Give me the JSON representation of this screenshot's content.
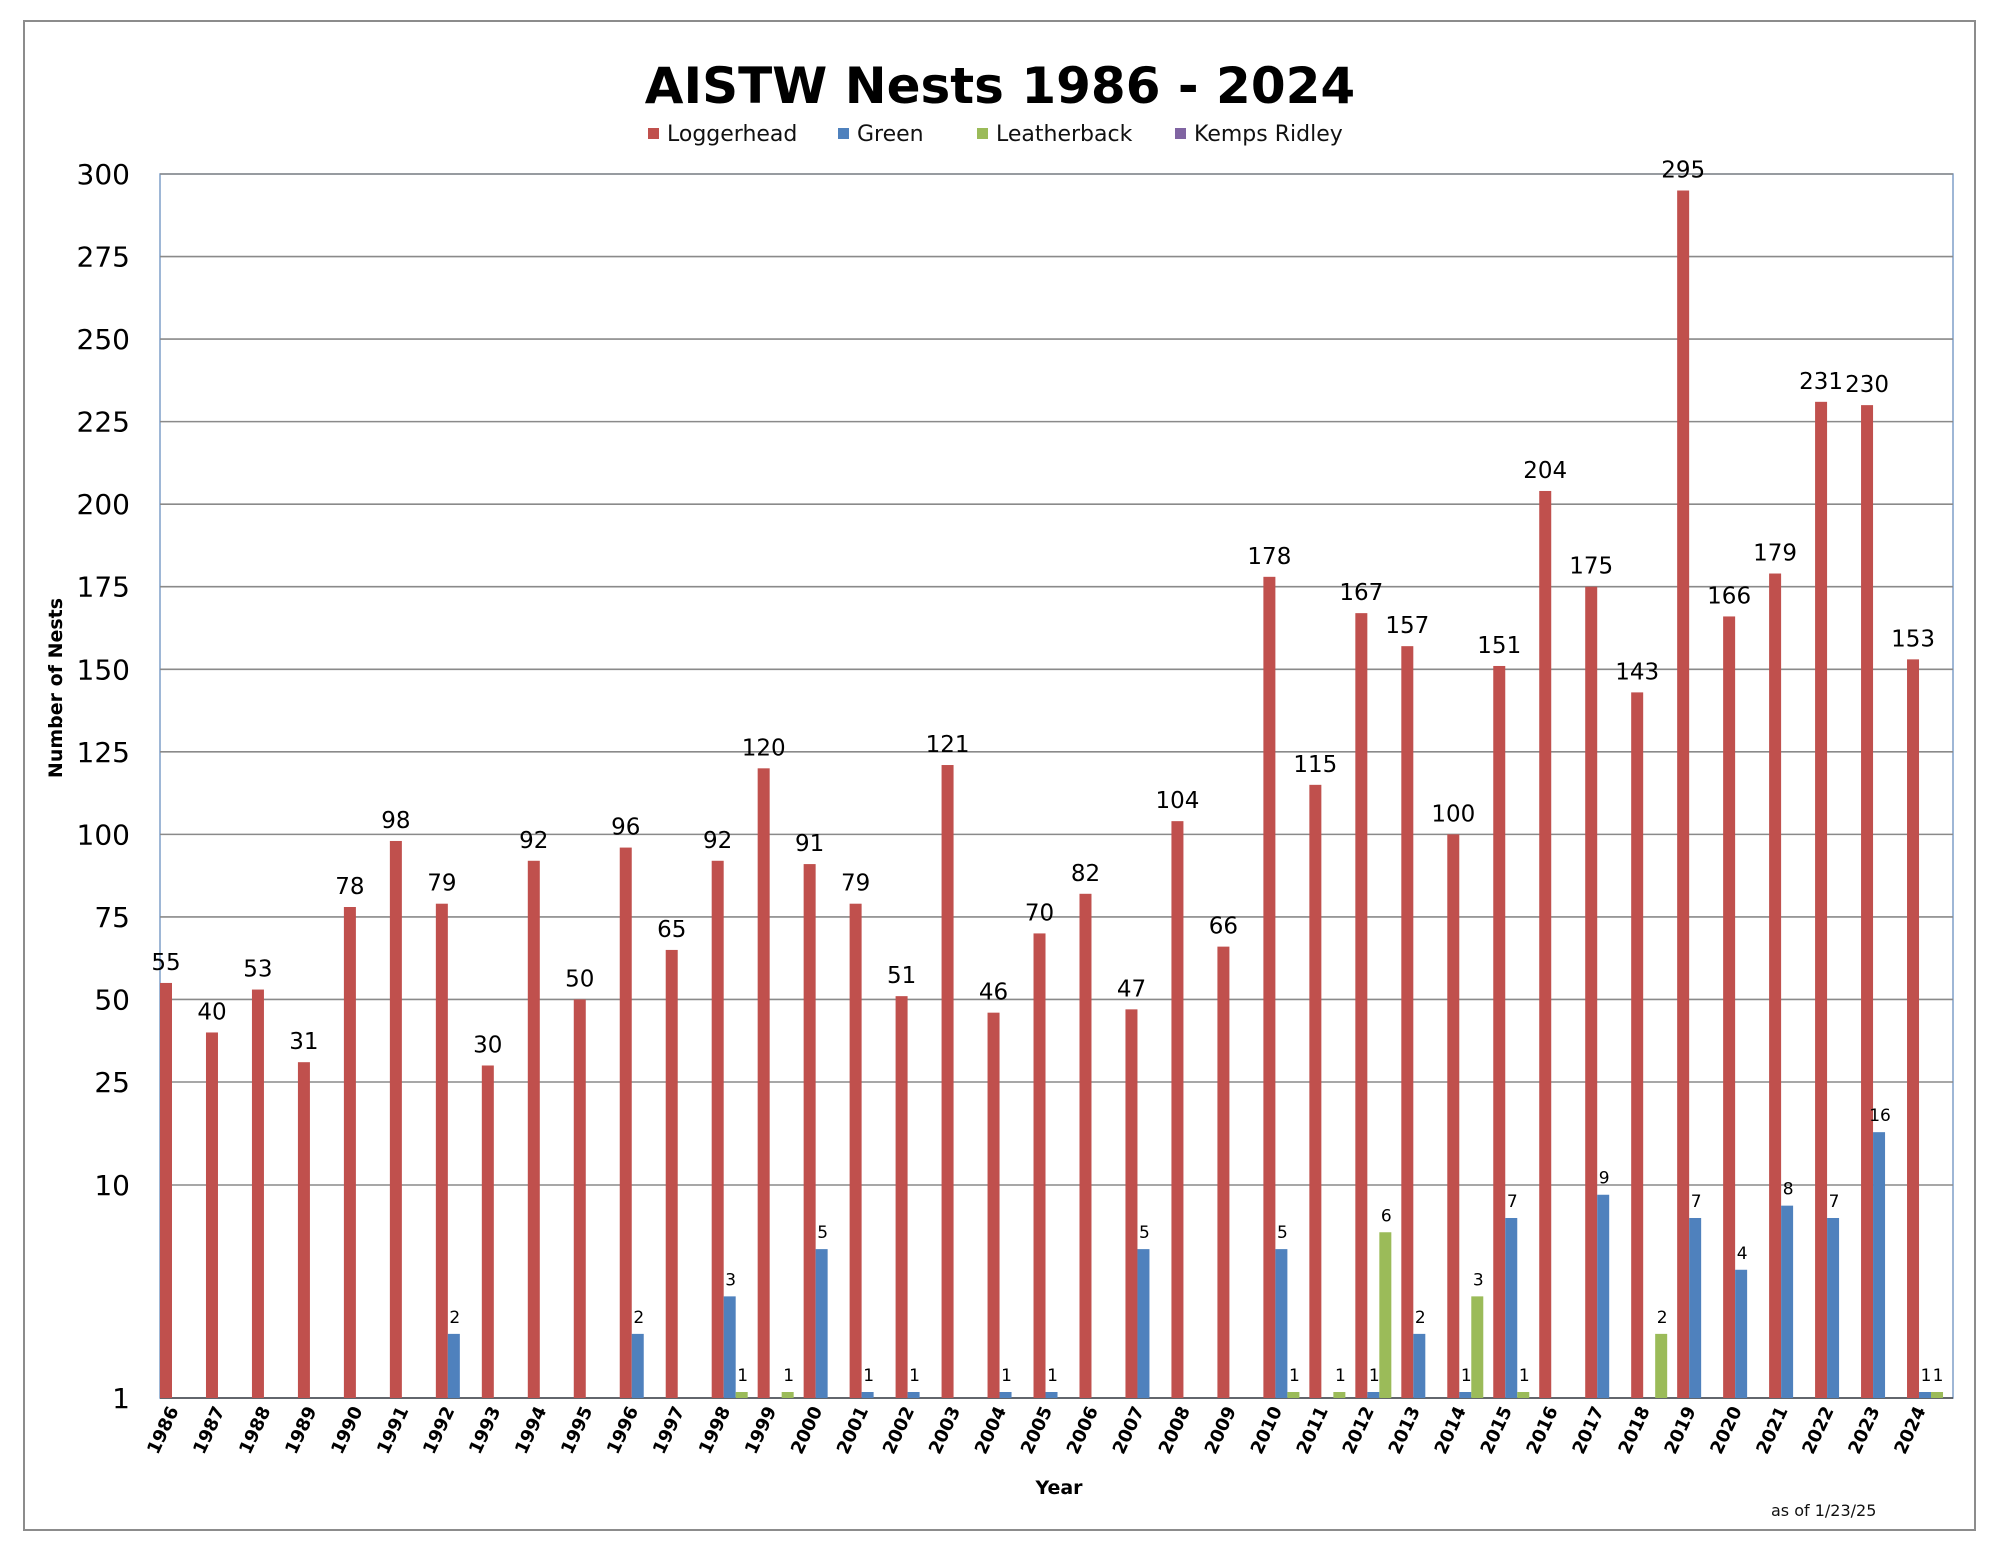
{
  "chart_data": {
    "type": "bar",
    "title": "AISTW Nests 1986 - 2024",
    "xlabel": "Year",
    "ylabel": "Number of Nests",
    "note": "as of 1/23/25",
    "legend_position": "top",
    "grid": true,
    "y_scale": "broken: log-like 1-25, linear 25-300",
    "ylim": [
      1,
      300
    ],
    "y_ticks": [
      1,
      10,
      25,
      50,
      75,
      100,
      125,
      150,
      175,
      200,
      225,
      250,
      275,
      300
    ],
    "categories": [
      "1986",
      "1987",
      "1988",
      "1989",
      "1990",
      "1991",
      "1992",
      "1993",
      "1994",
      "1995",
      "1996",
      "1997",
      "1998",
      "1999",
      "2000",
      "2001",
      "2002",
      "2003",
      "2004",
      "2005",
      "2006",
      "2007",
      "2008",
      "2009",
      "2010",
      "2011",
      "2012",
      "2013",
      "2014",
      "2015",
      "2016",
      "2017",
      "2018",
      "2019",
      "2020",
      "2021",
      "2022",
      "2023",
      "2024"
    ],
    "series": [
      {
        "name": "Loggerhead",
        "color": "#c0504d",
        "values": [
          55,
          40,
          53,
          31,
          78,
          98,
          79,
          30,
          92,
          50,
          96,
          65,
          92,
          120,
          91,
          79,
          51,
          121,
          46,
          70,
          82,
          47,
          104,
          66,
          178,
          115,
          167,
          157,
          100,
          151,
          204,
          175,
          143,
          295,
          166,
          179,
          231,
          230,
          153
        ]
      },
      {
        "name": "Green",
        "color": "#4f81bd",
        "values": [
          null,
          null,
          null,
          null,
          null,
          null,
          2,
          null,
          null,
          null,
          2,
          null,
          3,
          null,
          5,
          1,
          1,
          null,
          1,
          1,
          null,
          5,
          null,
          null,
          5,
          null,
          1,
          2,
          1,
          7,
          null,
          9,
          null,
          7,
          4,
          8,
          7,
          16,
          1
        ]
      },
      {
        "name": "Leatherback",
        "color": "#9bbb59",
        "values": [
          null,
          null,
          null,
          null,
          null,
          null,
          null,
          null,
          null,
          null,
          null,
          null,
          1,
          1,
          null,
          null,
          null,
          null,
          null,
          null,
          null,
          null,
          null,
          null,
          1,
          1,
          6,
          null,
          3,
          1,
          null,
          null,
          2,
          null,
          null,
          null,
          null,
          null,
          1
        ]
      },
      {
        "name": "Kemps Ridley",
        "color": "#8064a2",
        "values": [
          null,
          null,
          null,
          null,
          null,
          null,
          null,
          null,
          null,
          null,
          null,
          null,
          null,
          null,
          null,
          null,
          null,
          null,
          null,
          null,
          null,
          null,
          null,
          null,
          null,
          null,
          null,
          null,
          null,
          null,
          null,
          null,
          null,
          null,
          null,
          null,
          null,
          null,
          null
        ]
      }
    ]
  }
}
